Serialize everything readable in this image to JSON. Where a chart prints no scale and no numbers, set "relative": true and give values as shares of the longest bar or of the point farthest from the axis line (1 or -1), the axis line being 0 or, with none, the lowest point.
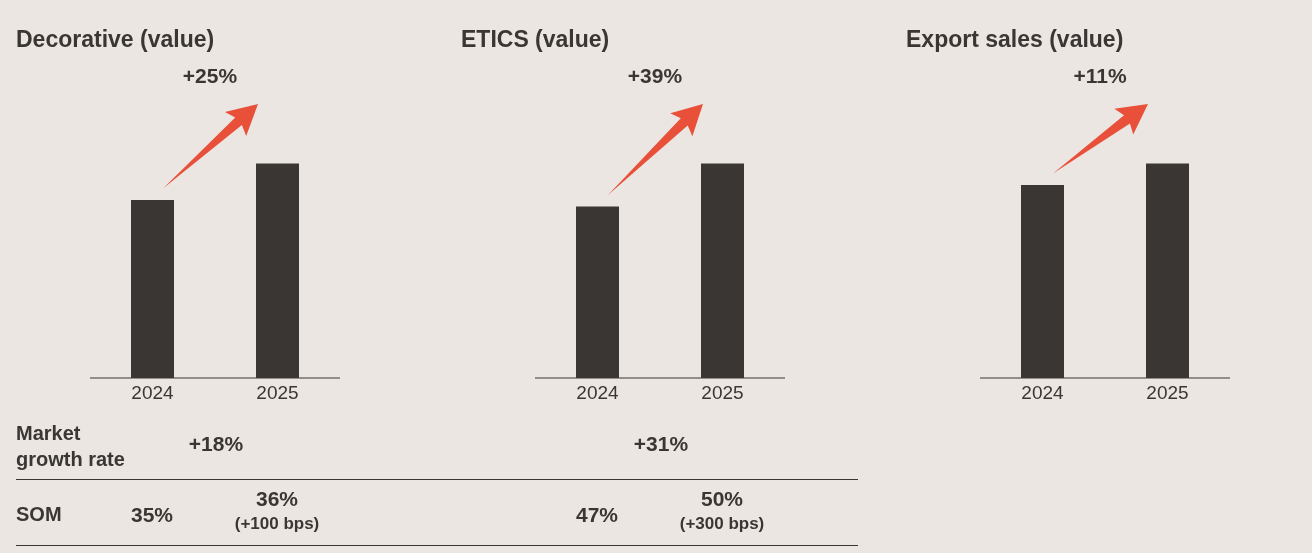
{
  "chart_data": [
    {
      "type": "bar",
      "title": "Decorative (value)",
      "categories": [
        "2024",
        "2025"
      ],
      "values": [
        0.83,
        1
      ],
      "color": "#3a3634",
      "relative": true,
      "annotations": [
        "+25%",
        "Market growth rate",
        "+18%",
        "SOM",
        "35%",
        "36%",
        "(+100 bps)"
      ]
    },
    {
      "type": "bar",
      "title": "ETICS (value)",
      "categories": [
        "2024",
        "2025"
      ],
      "values": [
        0.8,
        1
      ],
      "color": "#3a3634",
      "relative": true,
      "annotations": [
        "+39%",
        "+31%",
        "47%",
        "50%",
        "(+300 bps)"
      ]
    },
    {
      "type": "bar",
      "title": "Export sales (value)",
      "categories": [
        "2024",
        "2025"
      ],
      "values": [
        0.9,
        1
      ],
      "color": "#3a3634",
      "relative": true,
      "annotations": [
        "+11%"
      ]
    }
  ]
}
